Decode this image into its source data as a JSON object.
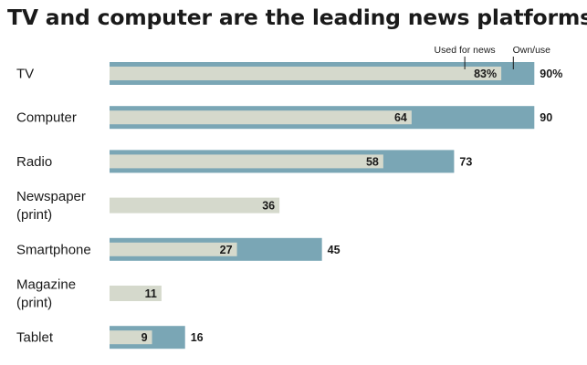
{
  "chart_data": {
    "type": "bar",
    "orientation": "horizontal",
    "title": "TV and computer are the leading news platforms",
    "categories": [
      [
        "TV"
      ],
      [
        "Computer"
      ],
      [
        "Radio"
      ],
      [
        "Newspaper",
        "(print)"
      ],
      [
        "Smartphone"
      ],
      [
        "Magazine",
        "(print)"
      ],
      [
        "Tablet"
      ]
    ],
    "series": [
      {
        "name": "Own/use",
        "color": "#7aa6b5",
        "values": [
          90,
          90,
          73,
          null,
          45,
          null,
          16
        ],
        "labels": [
          "90%",
          "90",
          "73",
          "",
          "45",
          "",
          "16"
        ]
      },
      {
        "name": "Used for news",
        "color": "#d5d9cc",
        "values": [
          83,
          64,
          58,
          36,
          27,
          11,
          9
        ],
        "labels": [
          "83%",
          "64",
          "58",
          "36",
          "27",
          "11",
          "9"
        ]
      }
    ],
    "xlim": [
      0,
      100
    ],
    "grid": false,
    "legend_placement": "top-right, above first bar"
  }
}
